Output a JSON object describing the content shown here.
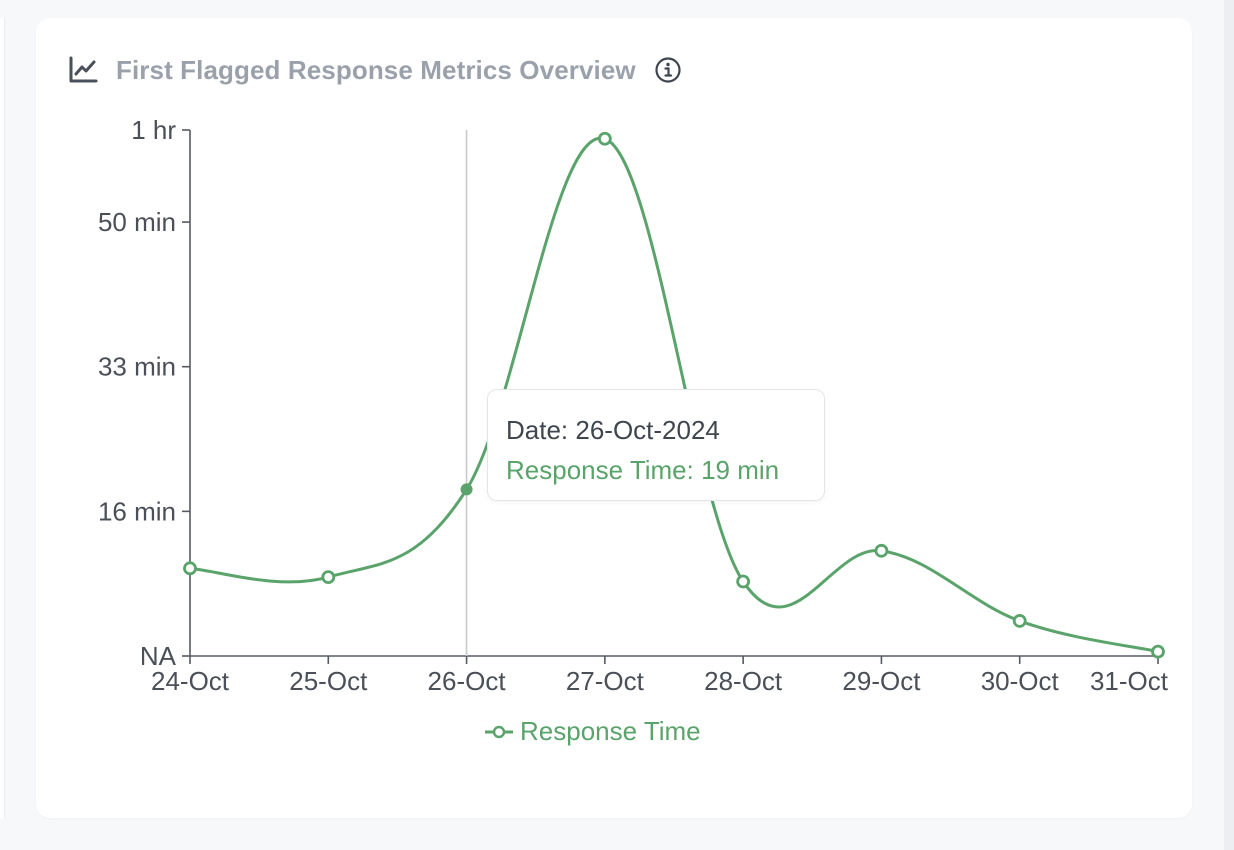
{
  "card": {
    "title": "First Flagged Response Metrics Overview",
    "title_icon": "line-chart-icon",
    "info_icon": "info-icon"
  },
  "tooltip": {
    "date_line": "Date: 26-Oct-2024",
    "value_line": "Response Time: 19 min"
  },
  "legend": {
    "label": "Response Time"
  },
  "colors": {
    "series": "#5aa36b",
    "axis": "#555a63",
    "crosshair": "#c8cacf",
    "title": "#9aa1ab"
  },
  "chart_data": {
    "type": "line",
    "categories": [
      "24-Oct",
      "25-Oct",
      "26-Oct",
      "27-Oct",
      "28-Oct",
      "29-Oct",
      "30-Oct",
      "31-Oct"
    ],
    "series": [
      {
        "name": "Response Time",
        "values": [
          10,
          9,
          19,
          59,
          8.5,
          12,
          4,
          0.5
        ]
      }
    ],
    "ylabel": "",
    "xlabel": "",
    "yticks": [
      {
        "value": 0,
        "label": "NA"
      },
      {
        "value": 16.5,
        "label": "16 min"
      },
      {
        "value": 33,
        "label": "33 min"
      },
      {
        "value": 49.5,
        "label": "50 min"
      },
      {
        "value": 60,
        "label": "1 hr"
      }
    ],
    "ylim": [
      0,
      60
    ],
    "hovered_category": "26-Oct",
    "grid": false,
    "legend_position": "bottom"
  }
}
